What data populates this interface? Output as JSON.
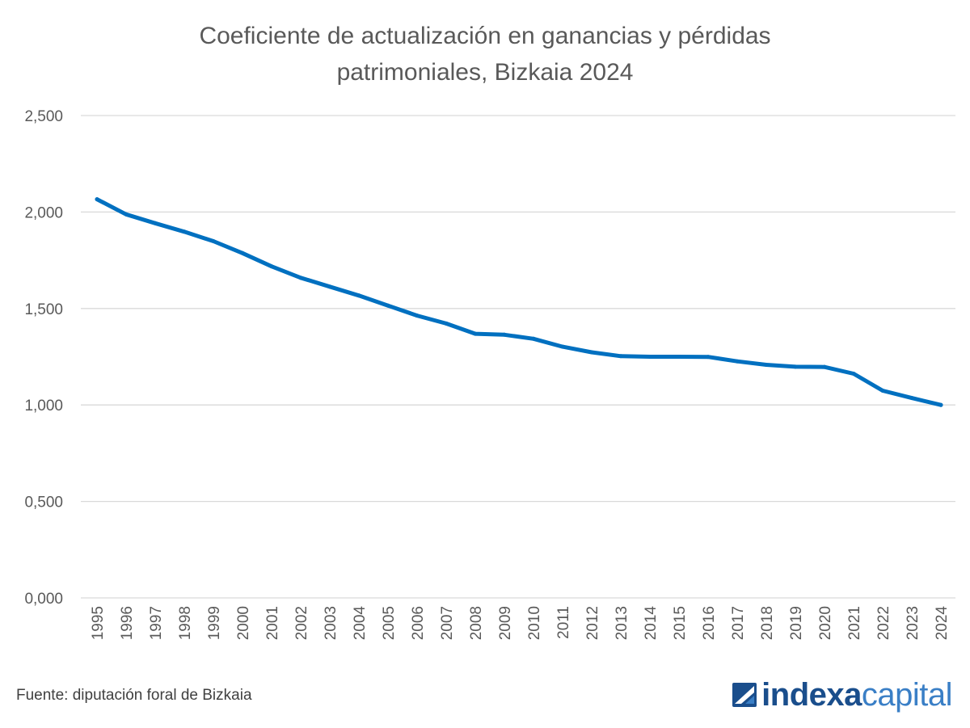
{
  "chart_data": {
    "type": "line",
    "title_lines": [
      "Coeficiente de actualización en ganancias y pérdidas",
      "patrimoniales, Bizkaia 2024"
    ],
    "xlabel": "",
    "ylabel": "",
    "categories": [
      "1995",
      "1996",
      "1997",
      "1998",
      "1999",
      "2000",
      "2001",
      "2002",
      "2003",
      "2004",
      "2005",
      "2006",
      "2007",
      "2008",
      "2009",
      "2010",
      "2011",
      "2012",
      "2013",
      "2014",
      "2015",
      "2016",
      "2017",
      "2018",
      "2019",
      "2020",
      "2021",
      "2022",
      "2023",
      "2024"
    ],
    "series": [
      {
        "values": [
          2.066,
          1.988,
          1.942,
          1.898,
          1.849,
          1.787,
          1.718,
          1.659,
          1.613,
          1.567,
          1.515,
          1.463,
          1.422,
          1.369,
          1.364,
          1.343,
          1.302,
          1.273,
          1.253,
          1.25,
          1.25,
          1.249,
          1.226,
          1.208,
          1.198,
          1.197,
          1.162,
          1.074,
          1.036,
          1.0
        ],
        "color": "#0070c0"
      }
    ],
    "ylim": [
      0,
      2.5
    ],
    "yticks": [
      "0,000",
      "0,500",
      "1,000",
      "1,500",
      "2,000",
      "2,500"
    ],
    "grid": true,
    "legend": "none"
  },
  "footer": {
    "source": "Fuente: diputación foral de Bizkaia",
    "brand_part1": "indexa",
    "brand_part2": "capital"
  },
  "colors": {
    "line": "#0070c0",
    "grid": "#d9d9d9",
    "text": "#595959",
    "brand_dark": "#1a4e8c",
    "brand_light": "#3a7fc6"
  },
  "icons": {
    "brand_mark": "indexa-logo-icon"
  }
}
